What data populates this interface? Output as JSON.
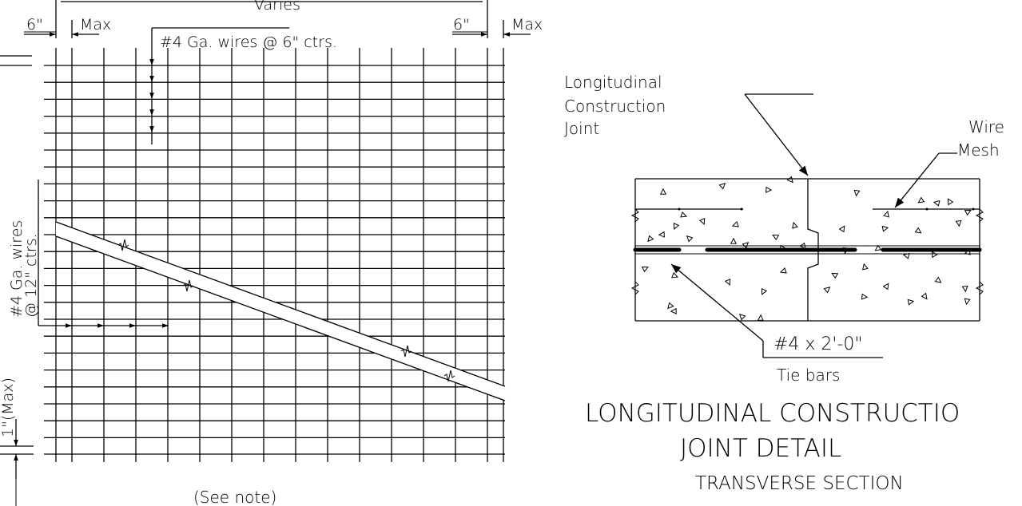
{
  "left_detail": {
    "top_dimension": "Varies",
    "left_edge_dim": "6\"",
    "left_edge_max": "Max",
    "right_edge_dim": "6\"",
    "right_edge_max": "Max",
    "longitudinal_wires": "#4 Ga. wires @ 6\" ctrs.",
    "transverse_wires_line1": "#4 Ga. wires",
    "transverse_wires_line2": "@ 12\" ctrs.",
    "edge_clearance": "1\"(Max)",
    "footnote": "(See note)"
  },
  "right_detail": {
    "joint_label_line1": "Longitudinal",
    "joint_label_line2": "Construction",
    "joint_label_line3": "Joint",
    "mesh_label_line1": "Wire",
    "mesh_label_line2": "Mesh",
    "tie_bar_size": "#4 x 2'-0\"",
    "tie_bar_label": "Tie bars",
    "title_line1": "LONGITUDINAL CONSTRUCTIO",
    "title_line2": "JOINT DETAIL",
    "subtitle": "TRANSVERSE SECTION"
  }
}
